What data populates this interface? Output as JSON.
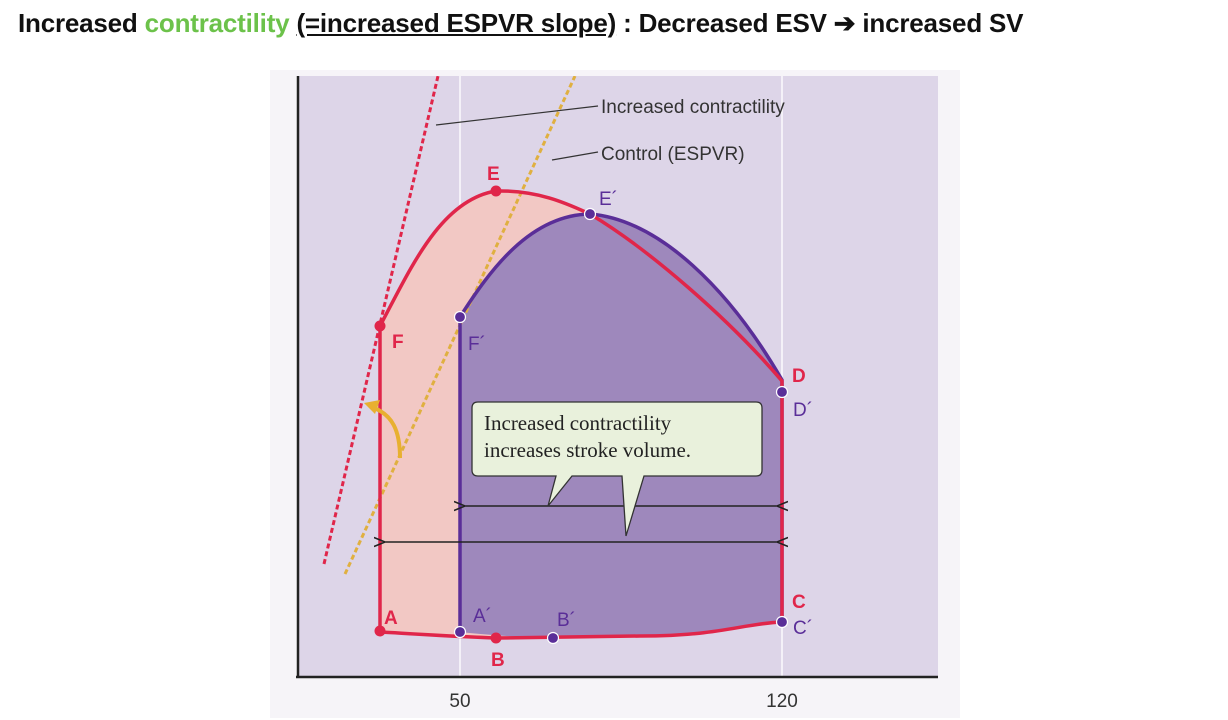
{
  "headline": {
    "part1": "Increased ",
    "part2": "contractility",
    "part3": " ",
    "part4": "(=increased ESPVR slope)",
    "part5": " : Decreased ESV ",
    "arrow": "➔",
    "part6": " increased SV"
  },
  "diagram": {
    "line_labels": {
      "increased": "Increased contractility",
      "control": "Control (ESPVR)"
    },
    "callout": {
      "line1": "Increased contractility",
      "line2": "increases stroke volume."
    },
    "points": {
      "A": "A",
      "B": "B",
      "C": "C",
      "D": "D",
      "E": "E",
      "F": "F",
      "A2": "A´",
      "B2": "B´",
      "C2": "C´",
      "D2": "D´",
      "E2": "E´",
      "F2": "F´"
    },
    "x_ticks": [
      "50",
      "120"
    ],
    "colors": {
      "control_loop": "#e0264a",
      "increased_loop": "#5a2e98",
      "increased_fill": "#9e88bc",
      "control_fill": "#f2c8c4",
      "plot_bg": "#ddd5e8",
      "control_espvr": "#e0b040",
      "increased_espvr": "#e0264a"
    }
  }
}
